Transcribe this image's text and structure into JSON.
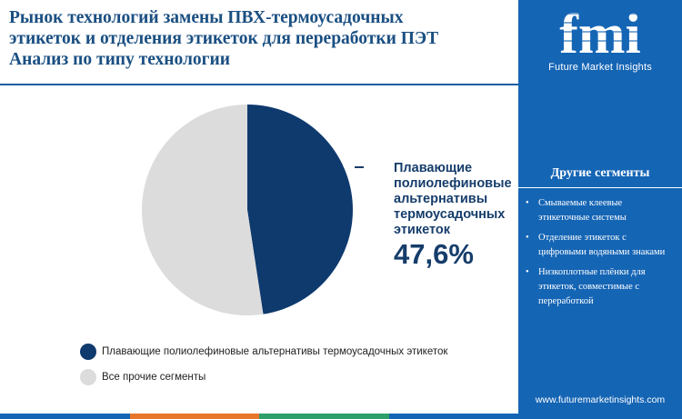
{
  "title_lines": [
    "Рынок технологий замены ПВХ-термоусадочных",
    "этикеток и отделения этикеток для переработки ПЭТ",
    "Анализ по типу технологии"
  ],
  "callout": {
    "label_lines": [
      "Плавающие",
      "полиолефиновые",
      "альтернативы",
      "термоусадочных",
      "этикеток"
    ],
    "value": "47,6%"
  },
  "chart_data": {
    "type": "pie",
    "title": "Рынок технологий замены ПВХ-термоусадочных этикеток и отделения этикеток для переработки ПЭТ Анализ по типу технологии",
    "slices": [
      {
        "name": "Плавающие полиолефиновые альтернативы термоусадочных этикеток",
        "value": 47.6,
        "color": "#0e3a6e"
      },
      {
        "name": "Все прочие сегменты",
        "value": 52.4,
        "color": "#dcdcdc"
      }
    ],
    "legend_placement": "bottom-left"
  },
  "sidebar": {
    "logo_text": "fmi",
    "logo_tagline": "Future Market Insights",
    "heading": "Другие сегменты",
    "items": [
      "Смываемые клеевые этикеточные системы",
      "Отделение этикеток с цифровыми водяными знаками",
      "Низкоплотные плёнки для этикеток, совместимые с переработкой"
    ],
    "url": "www.futuremarketinsights.com"
  },
  "colors": {
    "sidebar_bg": "#1565b5",
    "title": "#1a4f82",
    "primary_slice": "#0e3a6e",
    "other_slice": "#dcdcdc",
    "bottom_bar": [
      "#1565b5",
      "#e8762b",
      "#2e9e6b",
      "#1565b5"
    ]
  }
}
